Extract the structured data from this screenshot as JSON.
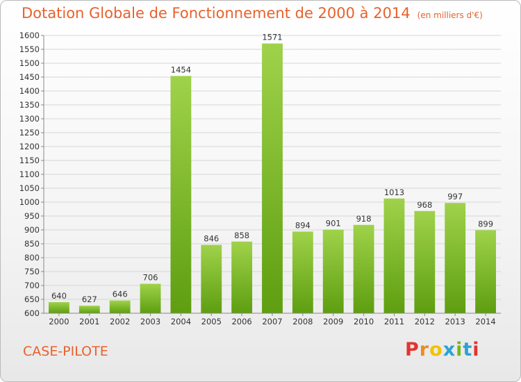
{
  "header": {
    "title": "Dotation Globale de Fonctionnement de 2000 à 2014",
    "unit": "(en milliers d'€)"
  },
  "footer": {
    "place": "CASE-PILOTE",
    "logo_letters": [
      "P",
      "r",
      "o",
      "x",
      "i",
      "t",
      "i"
    ],
    "logo_colors": [
      "#e3342f",
      "#f08a24",
      "#f2c200",
      "#2aa3d6",
      "#7ab51d",
      "#2aa3d6",
      "#e3342f"
    ]
  },
  "colors": {
    "bar_light": "#9fd24a",
    "bar_dark": "#5e9e10",
    "accent": "#e8612c"
  },
  "chart_data": {
    "type": "bar",
    "title": "Dotation Globale de Fonctionnement de 2000 à 2014",
    "subtitle": "(en milliers d'€)",
    "xlabel": "",
    "ylabel": "",
    "categories": [
      "2000",
      "2001",
      "2002",
      "2003",
      "2004",
      "2005",
      "2006",
      "2007",
      "2008",
      "2009",
      "2010",
      "2011",
      "2012",
      "2013",
      "2014"
    ],
    "values": [
      640,
      627,
      646,
      706,
      1454,
      846,
      858,
      1571,
      894,
      901,
      918,
      1013,
      968,
      997,
      899
    ],
    "data_labels": [
      "640",
      "627",
      "646",
      "706",
      "1454",
      "846",
      "858",
      "1571",
      "894",
      "901",
      "918",
      "1013",
      "968",
      "997",
      "899"
    ],
    "ylim": [
      600,
      1600
    ],
    "yticks": [
      "600",
      "650",
      "700",
      "750",
      "800",
      "850",
      "900",
      "950",
      "1000",
      "1050",
      "1100",
      "1150",
      "1200",
      "1250",
      "1300",
      "1350",
      "1400",
      "1450",
      "1500",
      "1550",
      "1600"
    ],
    "grid": true,
    "legend": "none"
  }
}
